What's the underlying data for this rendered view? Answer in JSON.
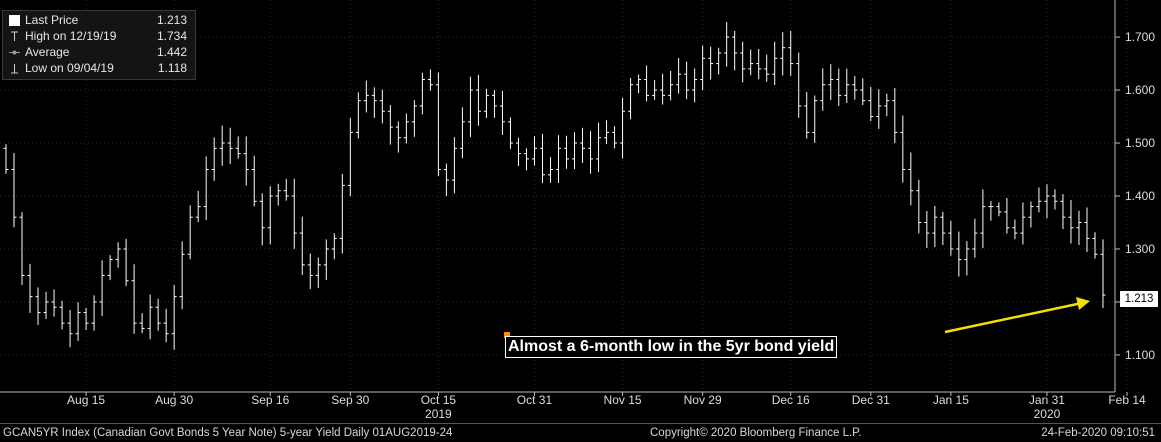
{
  "legend": {
    "last": {
      "label": "Last Price",
      "value": "1.213"
    },
    "high": {
      "label": "High on 12/19/19",
      "value": "1.734"
    },
    "average": {
      "label": "Average",
      "value": "1.442"
    },
    "low": {
      "label": "Low on 09/04/19",
      "value": "1.118"
    }
  },
  "annotation": {
    "text": "Almost a 6-month low in the 5yr bond yield",
    "arrow_color": "#f2e000"
  },
  "last_price_tag": "1.213",
  "footer": {
    "left": "GCAN5YR Index (Canadian Govt Bonds 5 Year Note) 5-year Yield  Daily 01AUG2019-24",
    "center": "Copyright© 2020 Bloomberg Finance L.P.",
    "right": "24-Feb-2020 09:10:51"
  },
  "colors": {
    "background": "#000000",
    "bars": "#ffffff",
    "grid": "#2a2a2a",
    "annotation_marker": "#ff8c00"
  },
  "chart_data": {
    "type": "bar",
    "subtype": "ohlc",
    "ylim": [
      1.03,
      1.77
    ],
    "y_ticks": [
      "1.100",
      "1.200",
      "1.300",
      "1.400",
      "1.500",
      "1.600",
      "1.700"
    ],
    "x_ticks": [
      "Aug 15",
      "Aug 30",
      "Sep 16",
      "Sep 30",
      "Oct 15",
      "Oct 31",
      "Nov 15",
      "Nov 29",
      "Dec 16",
      "Dec 31",
      "Jan 15",
      "Jan 31",
      "Feb 14"
    ],
    "year_labels": [
      "2019",
      "2020"
    ],
    "grid": true,
    "legend_position": "top-left",
    "series": [
      {
        "values": [
          1.45,
          1.36,
          1.25,
          1.21,
          1.18,
          1.2,
          1.19,
          1.16,
          1.14,
          1.18,
          1.16,
          1.2,
          1.25,
          1.28,
          1.3,
          1.24,
          1.16,
          1.15,
          1.19,
          1.16,
          1.14,
          1.21,
          1.29,
          1.36,
          1.38,
          1.45,
          1.49,
          1.5,
          1.49,
          1.48,
          1.45,
          1.39,
          1.34,
          1.4,
          1.41,
          1.4,
          1.33,
          1.27,
          1.25,
          1.27,
          1.3,
          1.32,
          1.42,
          1.52,
          1.58,
          1.59,
          1.58,
          1.56,
          1.53,
          1.51,
          1.54,
          1.57,
          1.62,
          1.61,
          1.45,
          1.43,
          1.49,
          1.54,
          1.6,
          1.56,
          1.59,
          1.57,
          1.54,
          1.5,
          1.48,
          1.47,
          1.49,
          1.44,
          1.45,
          1.49,
          1.47,
          1.5,
          1.49,
          1.47,
          1.51,
          1.52,
          1.5,
          1.56,
          1.61,
          1.62,
          1.59,
          1.6,
          1.59,
          1.61,
          1.63,
          1.6,
          1.62,
          1.66,
          1.65,
          1.67,
          1.7,
          1.67,
          1.64,
          1.65,
          1.64,
          1.63,
          1.66,
          1.68,
          1.65,
          1.57,
          1.52,
          1.58,
          1.61,
          1.62,
          1.59,
          1.61,
          1.6,
          1.58,
          1.55,
          1.57,
          1.58,
          1.52,
          1.45,
          1.41,
          1.35,
          1.33,
          1.36,
          1.33,
          1.3,
          1.28,
          1.3,
          1.33,
          1.38,
          1.38,
          1.37,
          1.34,
          1.33,
          1.36,
          1.38,
          1.39,
          1.4,
          1.39,
          1.36,
          1.34,
          1.35,
          1.32,
          1.29,
          1.213
        ]
      }
    ]
  }
}
